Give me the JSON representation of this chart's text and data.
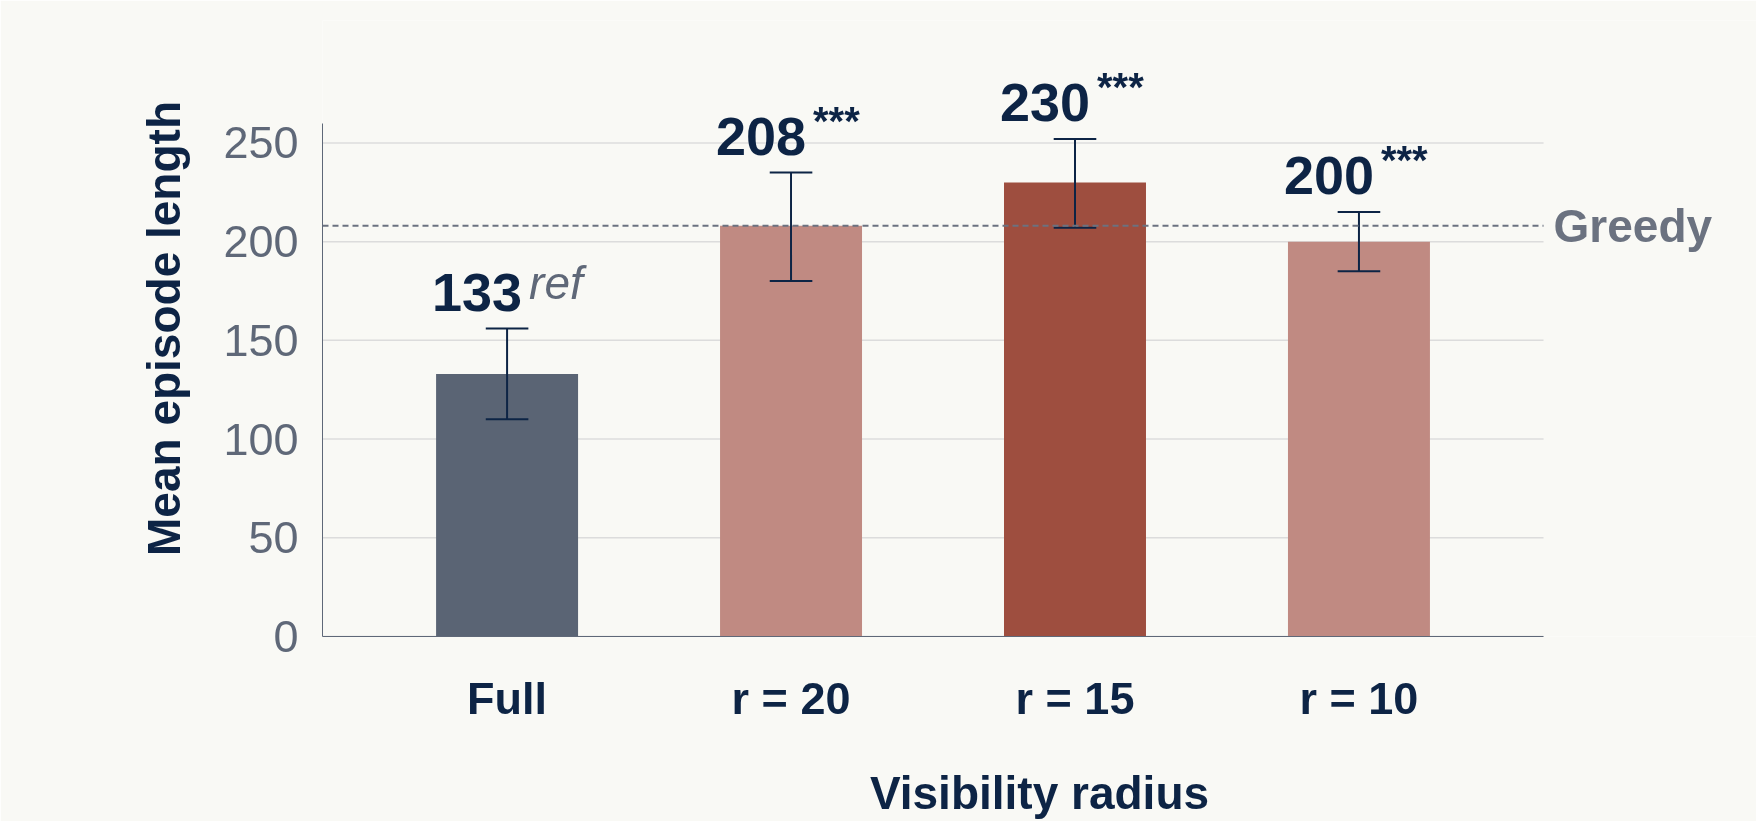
{
  "chart_data": {
    "type": "bar",
    "xlabel": "Visibility radius",
    "ylabel": "Mean episode length",
    "categories": [
      "Full",
      "r = 20",
      "r = 15",
      "r = 10"
    ],
    "values": [
      133,
      208,
      230,
      200
    ],
    "colors": [
      "#5a6474",
      "#c08a82",
      "#9e4e3f",
      "#c08a82"
    ],
    "errors": [
      [
        110,
        156
      ],
      [
        180,
        235
      ],
      [
        207,
        252
      ],
      [
        185,
        215
      ]
    ],
    "data_labels": true,
    "annotations": [
      {
        "text": "ref",
        "x": "Full",
        "y": 156
      },
      {
        "text": "***",
        "x": "r = 20",
        "y": 235
      },
      {
        "text": "***",
        "x": "r = 15",
        "y": 252
      },
      {
        "text": "***",
        "x": "r = 10",
        "y": 215
      }
    ],
    "ref_lines": [
      {
        "axis": "y",
        "value": 208,
        "label": "Greedy",
        "color": "#6b7280",
        "line_style": "dashed"
      }
    ],
    "ylim": [
      0,
      260
    ],
    "yticks": [
      0,
      50,
      100,
      150,
      200,
      250
    ],
    "grid": "y"
  }
}
